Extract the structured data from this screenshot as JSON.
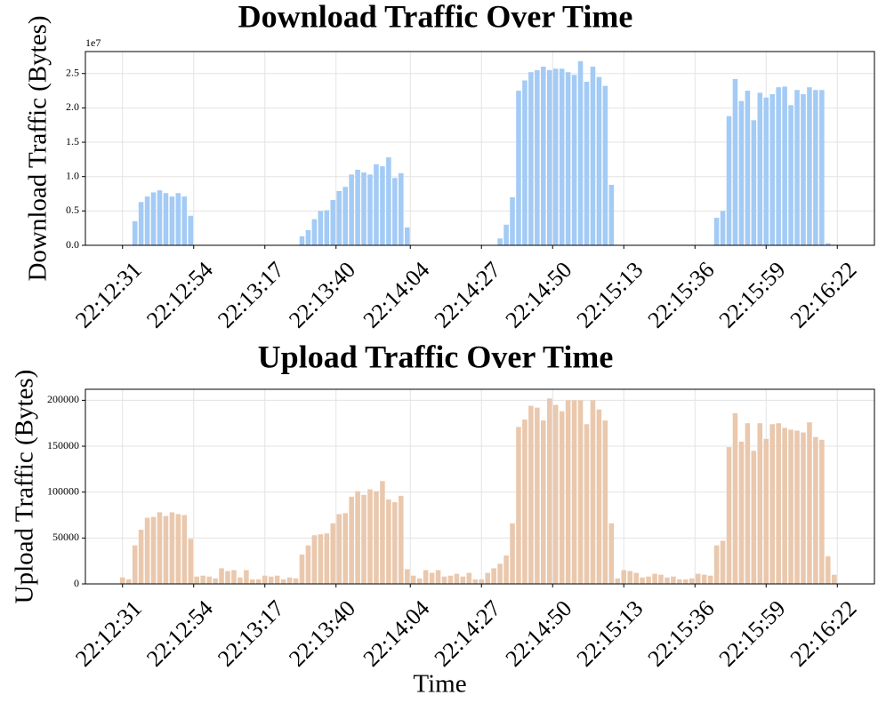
{
  "chart_data": [
    {
      "type": "bar",
      "title": "Download Traffic Over Time",
      "y_label": "Download Traffic (Bytes)",
      "y_offset_label": "1e7",
      "color": "#a3cbf5",
      "grid": true,
      "x": [
        "22:12:31",
        "22:12:33",
        "22:12:35",
        "22:12:37",
        "22:12:39",
        "22:12:41",
        "22:12:43",
        "22:12:45",
        "22:12:47",
        "22:12:49",
        "22:12:51",
        "22:12:53",
        "22:12:55",
        "22:12:57",
        "22:12:59",
        "22:13:01",
        "22:13:03",
        "22:13:05",
        "22:13:07",
        "22:13:09",
        "22:13:11",
        "22:13:13",
        "22:13:15",
        "22:13:17",
        "22:13:19",
        "22:13:21",
        "22:13:23",
        "22:13:25",
        "22:13:27",
        "22:13:29",
        "22:13:31",
        "22:13:33",
        "22:13:35",
        "22:13:37",
        "22:13:39",
        "22:13:41",
        "22:13:43",
        "22:13:45",
        "22:13:47",
        "22:13:49",
        "22:13:51",
        "22:13:53",
        "22:13:55",
        "22:13:57",
        "22:13:59",
        "22:14:01",
        "22:14:03",
        "22:14:05",
        "22:14:07",
        "22:14:09",
        "22:14:11",
        "22:14:13",
        "22:14:15",
        "22:14:17",
        "22:14:19",
        "22:14:21",
        "22:14:23",
        "22:14:25",
        "22:14:27",
        "22:14:29",
        "22:14:31",
        "22:14:33",
        "22:14:35",
        "22:14:37",
        "22:14:39",
        "22:14:41",
        "22:14:43",
        "22:14:45",
        "22:14:47",
        "22:14:49",
        "22:14:51",
        "22:14:53",
        "22:14:55",
        "22:14:57",
        "22:14:59",
        "22:15:01",
        "22:15:03",
        "22:15:05",
        "22:15:07",
        "22:15:09",
        "22:15:11",
        "22:15:13",
        "22:15:15",
        "22:15:17",
        "22:15:19",
        "22:15:21",
        "22:15:23",
        "22:15:25",
        "22:15:27",
        "22:15:29",
        "22:15:31",
        "22:15:33",
        "22:15:35",
        "22:15:37",
        "22:15:39",
        "22:15:41",
        "22:15:43",
        "22:15:45",
        "22:15:47",
        "22:15:49",
        "22:15:51",
        "22:15:53",
        "22:15:55",
        "22:15:57",
        "22:15:59",
        "22:16:01",
        "22:16:03",
        "22:16:05",
        "22:16:07",
        "22:16:09",
        "22:16:11",
        "22:16:13",
        "22:16:15",
        "22:16:17",
        "22:16:19",
        "22:16:21"
      ],
      "values": [
        0,
        0,
        3500000,
        6300000,
        7100000,
        7700000,
        8000000,
        7600000,
        7100000,
        7600000,
        7100000,
        4300000,
        0,
        0,
        0,
        0,
        0,
        0,
        0,
        0,
        0,
        0,
        0,
        0,
        0,
        0,
        0,
        0,
        0,
        1300000,
        2200000,
        3800000,
        5000000,
        5100000,
        6600000,
        7900000,
        8500000,
        10300000,
        11000000,
        10600000,
        10300000,
        11800000,
        11500000,
        12800000,
        9800000,
        10500000,
        2600000,
        0,
        0,
        0,
        0,
        0,
        0,
        0,
        0,
        0,
        0,
        0,
        0,
        0,
        0,
        1000000,
        3000000,
        7000000,
        22500000,
        24000000,
        25200000,
        25500000,
        26000000,
        25500000,
        25700000,
        25700000,
        25200000,
        24800000,
        26800000,
        23800000,
        26000000,
        24500000,
        23200000,
        8800000,
        0,
        0,
        0,
        0,
        0,
        0,
        0,
        0,
        0,
        0,
        0,
        0,
        0,
        0,
        0,
        0,
        4000000,
        5000000,
        18800000,
        24200000,
        21000000,
        22500000,
        18200000,
        22200000,
        21500000,
        22000000,
        23000000,
        23100000,
        20400000,
        22600000,
        22000000,
        23000000,
        22600000,
        22600000,
        300000,
        0
      ],
      "xlim": [
        "22:12:19",
        "22:16:34"
      ],
      "xticks": [
        "22:12:31",
        "22:12:54",
        "22:13:17",
        "22:13:40",
        "22:14:04",
        "22:14:27",
        "22:14:50",
        "22:15:13",
        "22:15:36",
        "22:15:59",
        "22:16:22"
      ],
      "ylim": [
        0,
        28200000
      ],
      "yticks": [
        {
          "value": 0,
          "label": "0.0"
        },
        {
          "value": 5000000,
          "label": "0.5"
        },
        {
          "value": 10000000,
          "label": "1.0"
        },
        {
          "value": 15000000,
          "label": "1.5"
        },
        {
          "value": 20000000,
          "label": "2.0"
        },
        {
          "value": 25000000,
          "label": "2.5"
        }
      ]
    },
    {
      "type": "bar",
      "title": "Upload Traffic Over Time",
      "x_label": "Time",
      "y_label": "Upload Traffic (Bytes)",
      "color": "#eac8ad",
      "grid": true,
      "x": [
        "22:12:31",
        "22:12:33",
        "22:12:35",
        "22:12:37",
        "22:12:39",
        "22:12:41",
        "22:12:43",
        "22:12:45",
        "22:12:47",
        "22:12:49",
        "22:12:51",
        "22:12:53",
        "22:12:55",
        "22:12:57",
        "22:12:59",
        "22:13:01",
        "22:13:03",
        "22:13:05",
        "22:13:07",
        "22:13:09",
        "22:13:11",
        "22:13:13",
        "22:13:15",
        "22:13:17",
        "22:13:19",
        "22:13:21",
        "22:13:23",
        "22:13:25",
        "22:13:27",
        "22:13:29",
        "22:13:31",
        "22:13:33",
        "22:13:35",
        "22:13:37",
        "22:13:39",
        "22:13:41",
        "22:13:43",
        "22:13:45",
        "22:13:47",
        "22:13:49",
        "22:13:51",
        "22:13:53",
        "22:13:55",
        "22:13:57",
        "22:13:59",
        "22:14:01",
        "22:14:03",
        "22:14:05",
        "22:14:07",
        "22:14:09",
        "22:14:11",
        "22:14:13",
        "22:14:15",
        "22:14:17",
        "22:14:19",
        "22:14:21",
        "22:14:23",
        "22:14:25",
        "22:14:27",
        "22:14:29",
        "22:14:31",
        "22:14:33",
        "22:14:35",
        "22:14:37",
        "22:14:39",
        "22:14:41",
        "22:14:43",
        "22:14:45",
        "22:14:47",
        "22:14:49",
        "22:14:51",
        "22:14:53",
        "22:14:55",
        "22:14:57",
        "22:14:59",
        "22:15:01",
        "22:15:03",
        "22:15:05",
        "22:15:07",
        "22:15:09",
        "22:15:11",
        "22:15:13",
        "22:15:15",
        "22:15:17",
        "22:15:19",
        "22:15:21",
        "22:15:23",
        "22:15:25",
        "22:15:27",
        "22:15:29",
        "22:15:31",
        "22:15:33",
        "22:15:35",
        "22:15:37",
        "22:15:39",
        "22:15:41",
        "22:15:43",
        "22:15:45",
        "22:15:47",
        "22:15:49",
        "22:15:51",
        "22:15:53",
        "22:15:55",
        "22:15:57",
        "22:15:59",
        "22:16:01",
        "22:16:03",
        "22:16:05",
        "22:16:07",
        "22:16:09",
        "22:16:11",
        "22:16:13",
        "22:16:15",
        "22:16:17",
        "22:16:19",
        "22:16:21"
      ],
      "values": [
        7000,
        5000,
        42000,
        59000,
        72000,
        73000,
        78000,
        74000,
        78000,
        76000,
        75000,
        49000,
        8000,
        9000,
        8000,
        6000,
        17000,
        14000,
        15000,
        7000,
        15000,
        5000,
        5000,
        9000,
        8000,
        9000,
        5000,
        7000,
        6000,
        32000,
        42000,
        53000,
        54000,
        55000,
        66000,
        76000,
        77000,
        95000,
        101000,
        97000,
        103000,
        101000,
        112000,
        92000,
        89000,
        96000,
        16000,
        9000,
        6000,
        15000,
        12000,
        15000,
        8000,
        9000,
        11000,
        8000,
        12000,
        5000,
        5000,
        12000,
        17000,
        22000,
        31000,
        66000,
        171000,
        179000,
        194000,
        192000,
        178000,
        202000,
        195000,
        188000,
        200000,
        200000,
        200000,
        174000,
        200000,
        190000,
        178000,
        66000,
        6000,
        15000,
        14000,
        12000,
        7000,
        8000,
        11000,
        10000,
        7000,
        8000,
        5000,
        5000,
        6000,
        11000,
        10000,
        9000,
        42000,
        47000,
        149000,
        186000,
        155000,
        175000,
        145000,
        175000,
        158000,
        174000,
        175000,
        170000,
        168000,
        167000,
        165000,
        176000,
        160000,
        157000,
        30000,
        10000
      ],
      "xlim": [
        "22:12:19",
        "22:16:34"
      ],
      "xticks": [
        "22:12:31",
        "22:12:54",
        "22:13:17",
        "22:13:40",
        "22:14:04",
        "22:14:27",
        "22:14:50",
        "22:15:13",
        "22:15:36",
        "22:15:59",
        "22:16:22"
      ],
      "ylim": [
        0,
        212000
      ],
      "yticks": [
        0,
        50000,
        100000,
        150000,
        200000
      ]
    }
  ]
}
